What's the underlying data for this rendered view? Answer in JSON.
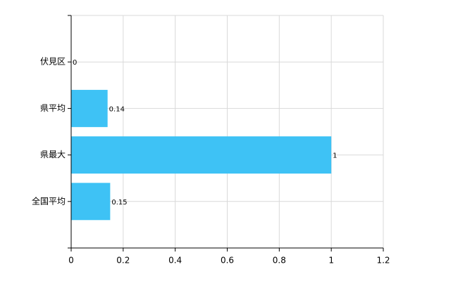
{
  "chart_data": {
    "type": "bar",
    "orientation": "horizontal",
    "categories": [
      "伏見区",
      "県平均",
      "県最大",
      "全国平均"
    ],
    "values": [
      0,
      0.14,
      1,
      0.15
    ],
    "color": "#3ec2f5",
    "xlim": [
      0,
      1.2
    ],
    "xticks": [
      0,
      0.2,
      0.4,
      0.6,
      0.8,
      1,
      1.2
    ],
    "grid": true
  }
}
